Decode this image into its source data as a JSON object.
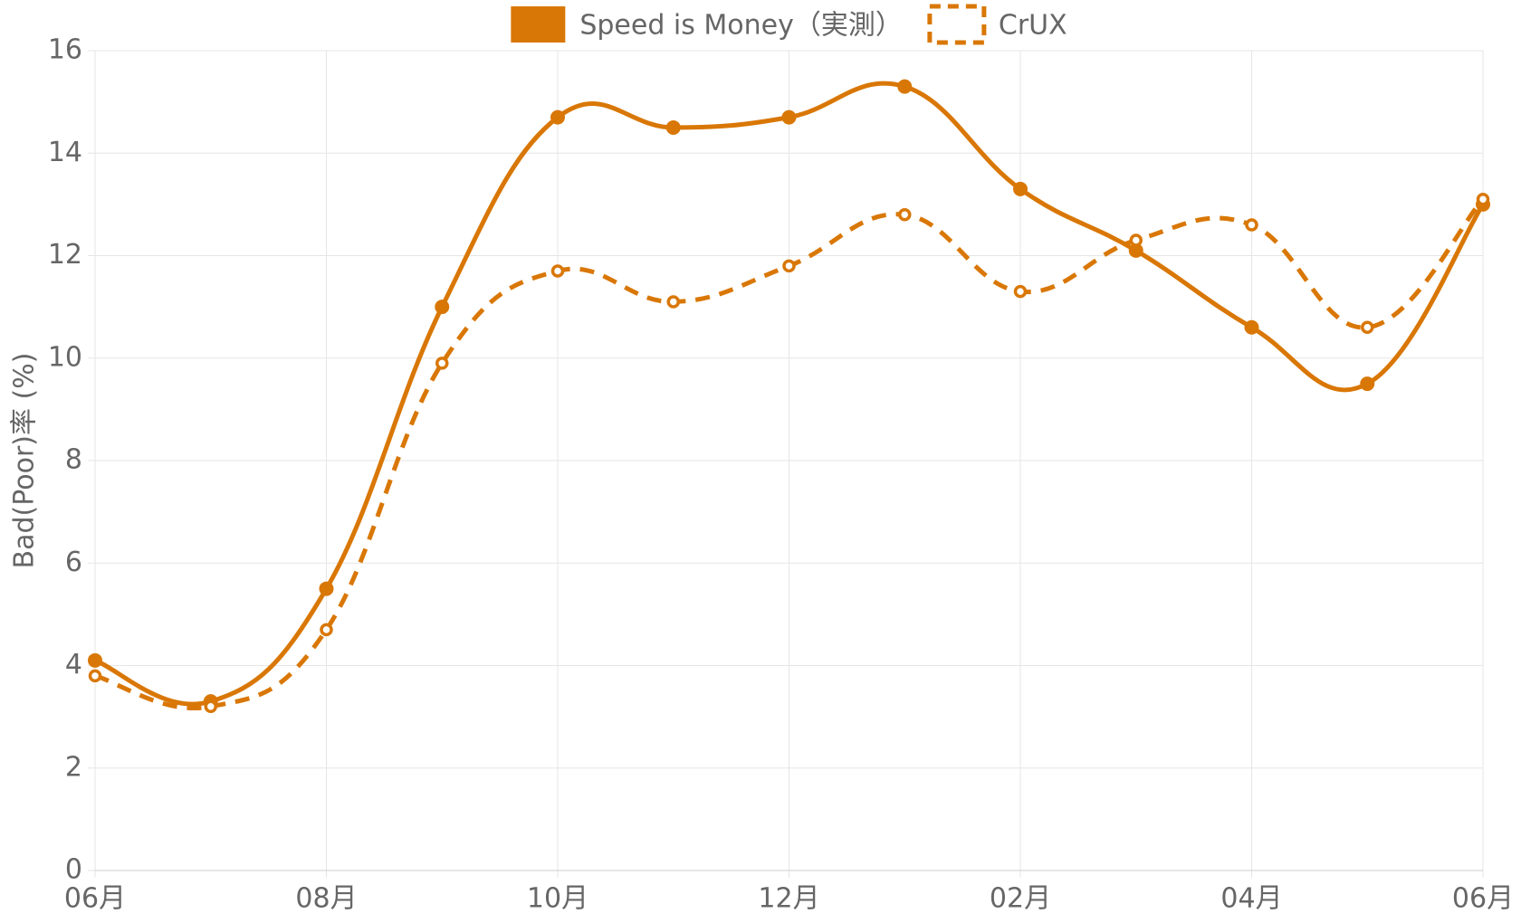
{
  "chart_data": {
    "type": "line",
    "y_label": "Bad(Poor)率 (%)",
    "categories": [
      "06月",
      null,
      "08月",
      null,
      "10月",
      null,
      "12月",
      null,
      "02月",
      null,
      "04月",
      null,
      "06月"
    ],
    "series": [
      {
        "name": "Speed is Money（実測）",
        "color": "#d97706",
        "line_style": "solid",
        "values": [
          4.1,
          3.3,
          5.5,
          11.0,
          14.7,
          14.5,
          14.7,
          15.3,
          13.3,
          12.1,
          10.6,
          9.5,
          13.0
        ]
      },
      {
        "name": "CrUX",
        "color": "#d97706",
        "line_style": "dashed",
        "values": [
          3.8,
          3.2,
          4.7,
          9.9,
          11.7,
          11.1,
          11.8,
          12.8,
          11.3,
          12.3,
          12.6,
          10.6,
          13.1
        ]
      }
    ],
    "ylim": [
      0,
      16
    ],
    "yticks": [
      0,
      2,
      4,
      6,
      8,
      10,
      12,
      14,
      16
    ],
    "grid": true,
    "legend": "top"
  }
}
